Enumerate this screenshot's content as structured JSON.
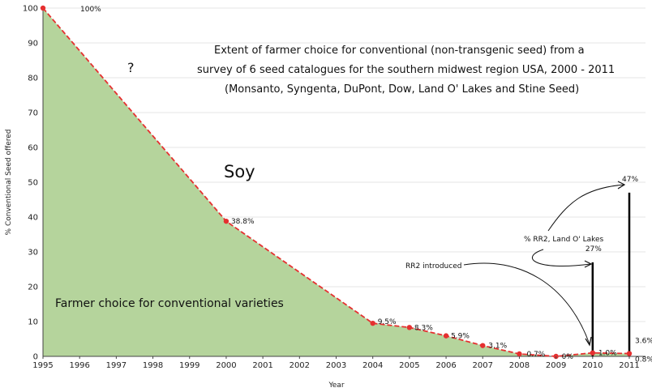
{
  "chart_data": {
    "type": "area",
    "title_lines": [
      "Extent of farmer choice for conventional (non-transgenic seed) from a",
      "survey of 6 seed catalogues for the southern midwest region USA, 2000 - 2011",
      "(Monsanto, Syngenta, DuPont, Dow, Land O' Lakes and Stine Seed)"
    ],
    "xlabel": "Year",
    "ylabel": "% Conventional Seed offered",
    "xlim": [
      1995,
      2011
    ],
    "ylim": [
      0,
      100
    ],
    "x_ticks": [
      "1995",
      "1996",
      "1997",
      "1998",
      "1999",
      "2000",
      "2001",
      "2002",
      "2003",
      "2004",
      "2005",
      "2006",
      "2007",
      "2008",
      "2009",
      "2010",
      "2011"
    ],
    "y_ticks": [
      "0",
      "10",
      "20",
      "30",
      "40",
      "50",
      "60",
      "70",
      "80",
      "90",
      "100"
    ],
    "grid": "horizontal",
    "fill_color": "#b5d49c",
    "line_color": "#e53030",
    "series": [
      {
        "points": [
          {
            "x": 1995,
            "y": 100,
            "label": "100%"
          },
          {
            "x": 2000,
            "y": 38.8,
            "label": "38.8%"
          },
          {
            "x": 2004,
            "y": 9.5,
            "label": "9.5%"
          },
          {
            "x": 2005,
            "y": 8.3,
            "label": "8.3%"
          },
          {
            "x": 2006,
            "y": 5.9,
            "label": "5.9%"
          },
          {
            "x": 2007,
            "y": 3.1,
            "label": "3.1%"
          },
          {
            "x": 2008,
            "y": 0.7,
            "label": "0.7%"
          },
          {
            "x": 2009,
            "y": 0,
            "label": "0%"
          },
          {
            "x": 2010,
            "y": 1.0,
            "label": "1.0%"
          },
          {
            "x": 2011,
            "y": 0.8,
            "label": "0.8%"
          }
        ]
      }
    ],
    "bars": [
      {
        "x": 2010,
        "value": 27,
        "label": "27%"
      },
      {
        "x": 2011,
        "value": 47,
        "label": "47%"
      }
    ],
    "extra_labels": [
      {
        "x": 2011,
        "y": 3.6,
        "label": "3.6%"
      }
    ],
    "annotations": {
      "question_mark": "?",
      "crop": "Soy",
      "area_label": "Farmer choice for conventional varieties",
      "rr2_introduced": "RR2 introduced",
      "rr2_land_olakes": "% RR2, Land O' Lakes"
    }
  }
}
